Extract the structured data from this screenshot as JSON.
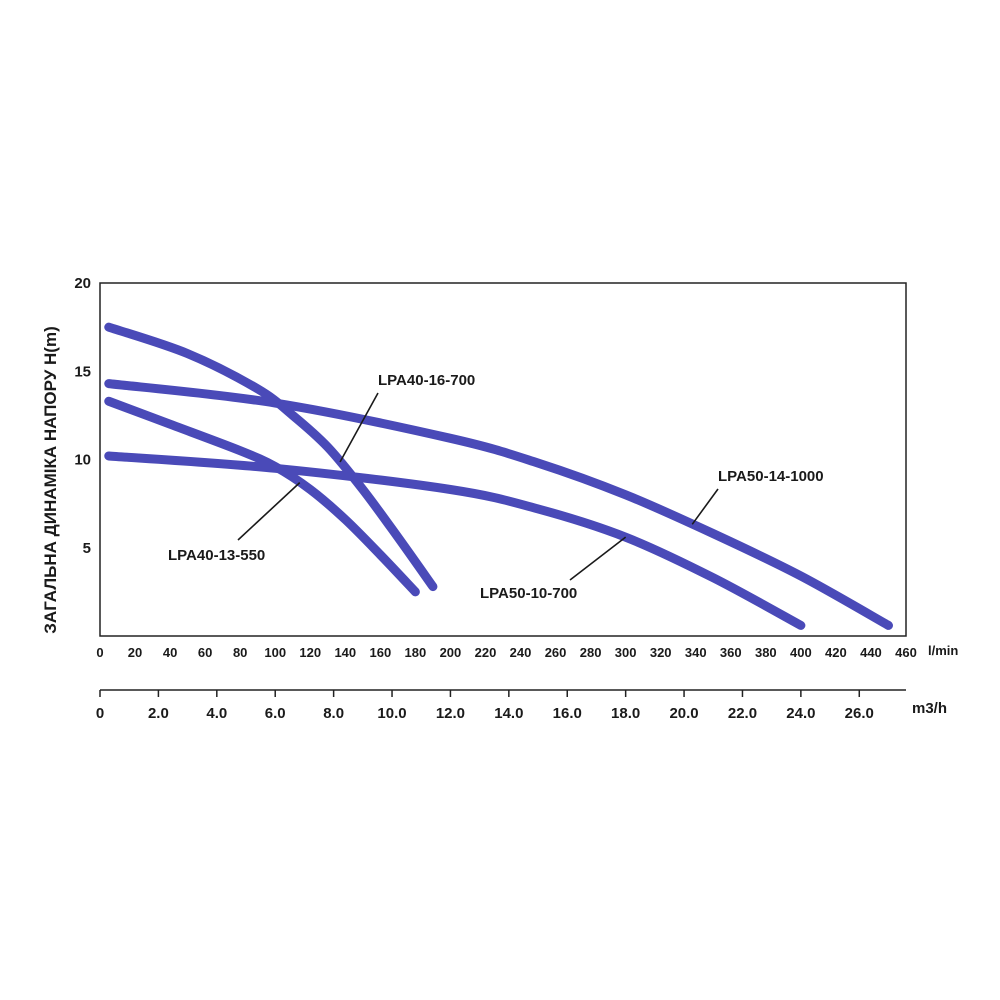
{
  "chart_data": {
    "type": "line",
    "ylabel": "ЗАГАЛЬНА ДИНАМІКА НАПОРУ H(m)",
    "xlabel": "l/min",
    "x2label": "m3/h",
    "xlim": [
      0,
      460
    ],
    "ylim": [
      0,
      20
    ],
    "x_ticks": [
      0,
      20,
      40,
      60,
      80,
      100,
      120,
      140,
      160,
      180,
      200,
      220,
      240,
      260,
      280,
      300,
      320,
      340,
      360,
      380,
      400,
      420,
      440,
      460
    ],
    "y_ticks": [
      5,
      10,
      15,
      20
    ],
    "x2_ticks": [
      "0",
      "2.0",
      "4.0",
      "6.0",
      "8.0",
      "10.0",
      "12.0",
      "14.0",
      "16.0",
      "18.0",
      "20.0",
      "22.0",
      "24.0",
      "26.0"
    ],
    "grid": false,
    "series_color": "#4a4ab8",
    "series": [
      {
        "name": "LPA40-16-700",
        "x": [
          5,
          50,
          90,
          110,
          130,
          150,
          170,
          190
        ],
        "y": [
          17.5,
          16.0,
          14.0,
          12.5,
          10.7,
          8.3,
          5.6,
          2.8
        ]
      },
      {
        "name": "LPA40-13-550",
        "x": [
          5,
          40,
          80,
          100,
          120,
          140,
          160,
          180
        ],
        "y": [
          13.3,
          12.0,
          10.5,
          9.6,
          8.3,
          6.6,
          4.6,
          2.5
        ]
      },
      {
        "name": "LPA50-14-1000",
        "x": [
          5,
          100,
          200,
          250,
          300,
          350,
          400,
          450
        ],
        "y": [
          14.3,
          13.2,
          11.2,
          9.8,
          8.0,
          5.8,
          3.4,
          0.6
        ]
      },
      {
        "name": "LPA50-10-700",
        "x": [
          5,
          100,
          200,
          250,
          300,
          350,
          400
        ],
        "y": [
          10.2,
          9.5,
          8.3,
          7.2,
          5.6,
          3.3,
          0.6
        ]
      }
    ]
  }
}
